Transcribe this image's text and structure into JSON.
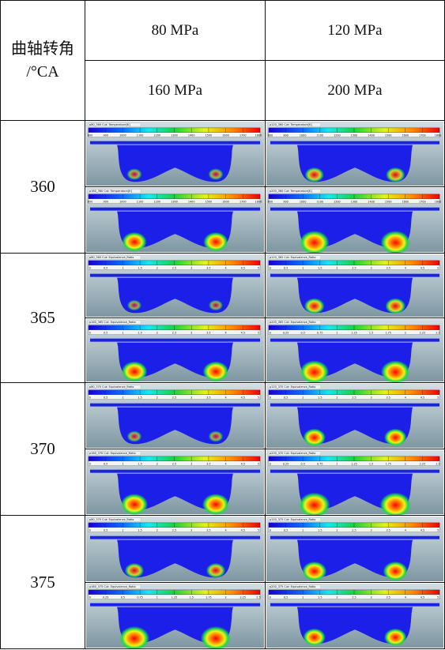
{
  "header": {
    "angle_label_line1": "曲轴转角",
    "angle_label_line2": "/°CA",
    "pressures": [
      "80 MPa",
      "120 MPa",
      "160 MPa",
      "200 MPa"
    ]
  },
  "rows": [
    {
      "angle": "360",
      "sims": [
        {
          "title": "p80_360 Cut: Temperature[K]",
          "ticks": [
            "800",
            "900",
            "1000",
            "1100",
            "1200",
            "1300",
            "1400",
            "1500",
            "1600",
            "1700",
            "1800"
          ],
          "level": 0.12
        },
        {
          "title": "p120_360 Cut: Temperature[K]",
          "ticks": [
            "800",
            "900",
            "1000",
            "1100",
            "1200",
            "1300",
            "1400",
            "1500",
            "1600",
            "1700",
            "1800"
          ],
          "level": 0.3
        },
        {
          "title": "p160_360 Cut: Temperature[K]",
          "ticks": [
            "800",
            "900",
            "1000",
            "1100",
            "1200",
            "1300",
            "1400",
            "1500",
            "1600",
            "1700",
            "1800"
          ],
          "level": 0.55
        },
        {
          "title": "p200_360 Cut: Temperature[K]",
          "ticks": [
            "800",
            "900",
            "1000",
            "1100",
            "1200",
            "1300",
            "1400",
            "1500",
            "1600",
            "1700",
            "1800"
          ],
          "level": 0.78
        }
      ]
    },
    {
      "angle": "365",
      "sims": [
        {
          "title": "p80_365 Cut: Equivalence_Ratio",
          "ticks": [
            "0",
            "0.5",
            "1",
            "1.5",
            "2",
            "2.5",
            "3",
            "3.5",
            "4",
            "4.5",
            "5"
          ],
          "level": 0.08
        },
        {
          "title": "p120_365 Cut: Equivalence_Ratio",
          "ticks": [
            "0",
            "0.5",
            "1",
            "1.5",
            "2",
            "2.5",
            "3",
            "3.5",
            "4",
            "4.5",
            "5"
          ],
          "level": 0.35
        },
        {
          "title": "p160_365 Cut: Equivalence_Ratio",
          "ticks": [
            "0",
            "0.5",
            "1",
            "1.5",
            "2",
            "2.5",
            "3",
            "3.5",
            "4",
            "4.5",
            "5"
          ],
          "level": 0.6
        },
        {
          "title": "p200_365 Cut: Equivalence_Ratio",
          "ticks": [
            "0",
            "0.25",
            "0.5",
            "0.75",
            "1",
            "1.25",
            "1.5",
            "1.75",
            "2",
            "2.25",
            "2.5"
          ],
          "level": 0.75
        }
      ]
    },
    {
      "angle": "370",
      "sims": [
        {
          "title": "p80_370 Cut: Equivalence_Ratio",
          "ticks": [
            "0",
            "0.5",
            "1",
            "1.5",
            "2",
            "2.5",
            "3",
            "3.5",
            "4",
            "4.5",
            "5"
          ],
          "level": 0.1
        },
        {
          "title": "p120_370 Cut: Equivalence_Ratio",
          "ticks": [
            "0",
            "0.5",
            "1",
            "1.5",
            "2",
            "2.5",
            "3",
            "3.5",
            "4",
            "4.5",
            "5"
          ],
          "level": 0.45
        },
        {
          "title": "p160_370 Cut: Equivalence_Ratio",
          "ticks": [
            "0",
            "0.5",
            "1",
            "1.5",
            "2",
            "2.5",
            "3",
            "3.5",
            "4",
            "4.5",
            "5"
          ],
          "level": 0.65
        },
        {
          "title": "p200_370 Cut: Equivalence_Ratio",
          "ticks": [
            "0",
            "0.25",
            "0.5",
            "0.75",
            "1",
            "1.25",
            "1.5",
            "1.75",
            "2",
            "2.25",
            "2.5"
          ],
          "level": 0.85
        }
      ]
    },
    {
      "angle": "375",
      "sims": [
        {
          "title": "p80_375 Cut: Equivalence_Ratio",
          "ticks": [
            "0",
            "0.5",
            "1",
            "1.5",
            "2",
            "2.5",
            "3",
            "3.5",
            "4",
            "4.5",
            "5"
          ],
          "level": 0.3
        },
        {
          "title": "p120_375 Cut: Equivalence_Ratio",
          "ticks": [
            "0",
            "0.5",
            "1",
            "1.5",
            "2",
            "2.5",
            "3",
            "3.5",
            "4",
            "4.5",
            "5"
          ],
          "level": 0.55
        },
        {
          "title": "p160_375 Cut: Equivalence_Ratio",
          "ticks": [
            "0",
            "0.25",
            "0.5",
            "0.75",
            "1",
            "1.25",
            "1.5",
            "1.75",
            "2",
            "2.25",
            "2.5"
          ],
          "level": 0.8
        },
        {
          "title": "p200_375 Cut: Equivalence_Ratio",
          "ticks": [
            "0",
            "0.5",
            "1",
            "1.5",
            "2",
            "2.5",
            "3",
            "3.5",
            "4",
            "4.5",
            "5"
          ],
          "level": 0.45
        }
      ]
    }
  ]
}
